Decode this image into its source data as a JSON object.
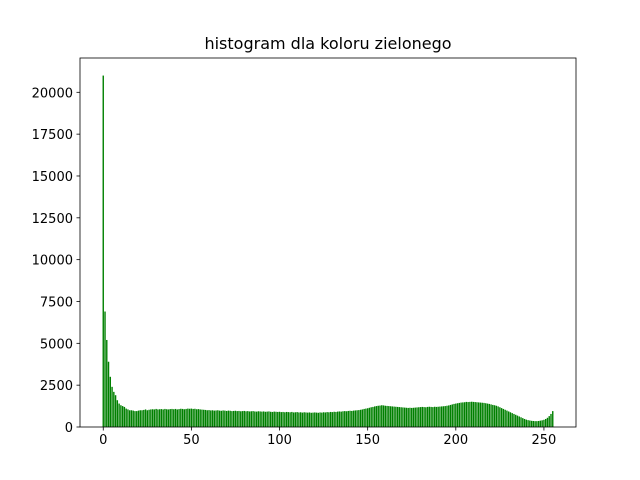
{
  "chart_data": {
    "type": "bar",
    "title": "histogram dla koloru zielonego",
    "color": "#008000",
    "x": [
      0,
      1,
      2,
      3,
      4,
      5,
      6,
      7,
      8,
      9,
      10,
      11,
      12,
      13,
      14,
      15,
      16,
      17,
      18,
      19,
      20,
      21,
      22,
      23,
      24,
      25,
      26,
      27,
      28,
      29,
      30,
      31,
      32,
      33,
      34,
      35,
      36,
      37,
      38,
      39,
      40,
      41,
      42,
      43,
      44,
      45,
      46,
      47,
      48,
      49,
      50,
      51,
      52,
      53,
      54,
      55,
      56,
      57,
      58,
      59,
      60,
      61,
      62,
      63,
      64,
      65,
      66,
      67,
      68,
      69,
      70,
      71,
      72,
      73,
      74,
      75,
      76,
      77,
      78,
      79,
      80,
      81,
      82,
      83,
      84,
      85,
      86,
      87,
      88,
      89,
      90,
      91,
      92,
      93,
      94,
      95,
      96,
      97,
      98,
      99,
      100,
      101,
      102,
      103,
      104,
      105,
      106,
      107,
      108,
      109,
      110,
      111,
      112,
      113,
      114,
      115,
      116,
      117,
      118,
      119,
      120,
      121,
      122,
      123,
      124,
      125,
      126,
      127,
      128,
      129,
      130,
      131,
      132,
      133,
      134,
      135,
      136,
      137,
      138,
      139,
      140,
      141,
      142,
      143,
      144,
      145,
      146,
      147,
      148,
      149,
      150,
      151,
      152,
      153,
      154,
      155,
      156,
      157,
      158,
      159,
      160,
      161,
      162,
      163,
      164,
      165,
      166,
      167,
      168,
      169,
      170,
      171,
      172,
      173,
      174,
      175,
      176,
      177,
      178,
      179,
      180,
      181,
      182,
      183,
      184,
      185,
      186,
      187,
      188,
      189,
      190,
      191,
      192,
      193,
      194,
      195,
      196,
      197,
      198,
      199,
      200,
      201,
      202,
      203,
      204,
      205,
      206,
      207,
      208,
      209,
      210,
      211,
      212,
      213,
      214,
      215,
      216,
      217,
      218,
      219,
      220,
      221,
      222,
      223,
      224,
      225,
      226,
      227,
      228,
      229,
      230,
      231,
      232,
      233,
      234,
      235,
      236,
      237,
      238,
      239,
      240,
      241,
      242,
      243,
      244,
      245,
      246,
      247,
      248,
      249,
      250,
      251,
      252,
      253,
      254,
      255
    ],
    "values": [
      21000,
      6900,
      5200,
      3900,
      3000,
      2400,
      2100,
      1900,
      1600,
      1400,
      1300,
      1250,
      1200,
      1100,
      1050,
      1000,
      1000,
      980,
      950,
      950,
      980,
      1000,
      1000,
      1020,
      1050,
      1000,
      1030,
      1050,
      1060,
      1050,
      1080,
      1050,
      1060,
      1070,
      1050,
      1080,
      1060,
      1050,
      1070,
      1080,
      1060,
      1080,
      1050,
      1070,
      1090,
      1080,
      1060,
      1080,
      1100,
      1090,
      1100,
      1080,
      1090,
      1060,
      1070,
      1050,
      1040,
      1030,
      1020,
      1000,
      1010,
      990,
      1000,
      980,
      990,
      1000,
      980,
      970,
      990,
      980,
      960,
      980,
      970,
      950,
      960,
      970,
      950,
      960,
      940,
      950,
      960,
      940,
      950,
      930,
      940,
      950,
      930,
      920,
      940,
      930,
      920,
      930,
      910,
      920,
      930,
      910,
      900,
      920,
      910,
      900,
      910,
      890,
      900,
      880,
      900,
      890,
      880,
      900,
      870,
      880,
      890,
      870,
      880,
      860,
      880,
      870,
      860,
      870,
      850,
      860,
      870,
      860,
      850,
      870,
      860,
      880,
      870,
      890,
      880,
      900,
      890,
      910,
      900,
      920,
      930,
      920,
      940,
      950,
      940,
      960,
      970,
      960,
      980,
      990,
      1000,
      1010,
      1030,
      1050,
      1080,
      1100,
      1120,
      1150,
      1180,
      1200,
      1230,
      1250,
      1270,
      1280,
      1300,
      1290,
      1270,
      1260,
      1250,
      1240,
      1230,
      1220,
      1210,
      1200,
      1190,
      1180,
      1170,
      1160,
      1150,
      1140,
      1150,
      1140,
      1150,
      1160,
      1170,
      1180,
      1190,
      1200,
      1190,
      1180,
      1200,
      1210,
      1200,
      1190,
      1210,
      1200,
      1210,
      1220,
      1230,
      1240,
      1250,
      1270,
      1290,
      1320,
      1350,
      1380,
      1400,
      1420,
      1440,
      1460,
      1470,
      1480,
      1500,
      1490,
      1500,
      1510,
      1500,
      1490,
      1480,
      1470,
      1460,
      1450,
      1440,
      1420,
      1400,
      1380,
      1350,
      1320,
      1300,
      1270,
      1230,
      1180,
      1130,
      1080,
      1030,
      980,
      930,
      880,
      830,
      780,
      730,
      680,
      630,
      580,
      530,
      480,
      440,
      410,
      390,
      370,
      360,
      350,
      350,
      360,
      380,
      400,
      430,
      480,
      550,
      650,
      780,
      950
    ],
    "xlim": [
      -13.19,
      268.19
    ],
    "xticks": [
      0,
      50,
      100,
      150,
      200,
      250
    ],
    "ylim": [
      0,
      22050
    ],
    "yticks": [
      0,
      2500,
      5000,
      7500,
      10000,
      12500,
      15000,
      17500,
      20000
    ]
  }
}
